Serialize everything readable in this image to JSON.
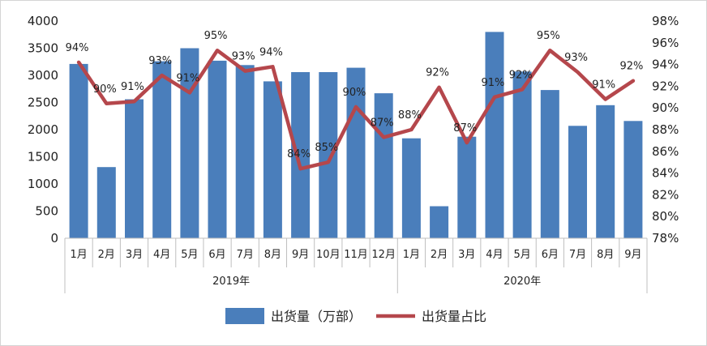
{
  "chart_data": {
    "type": "bar+line",
    "title": "",
    "categories": [
      "1月",
      "2月",
      "3月",
      "4月",
      "5月",
      "6月",
      "7月",
      "8月",
      "9月",
      "10月",
      "11月",
      "12月",
      "1月",
      "2月",
      "3月",
      "4月",
      "5月",
      "6月",
      "7月",
      "8月",
      "9月"
    ],
    "groups": [
      {
        "label": "2019年",
        "start": 0,
        "end": 11
      },
      {
        "label": "2020年",
        "start": 12,
        "end": 20
      }
    ],
    "series": [
      {
        "name": "出货量（万部）",
        "type": "bar",
        "axis": "left",
        "color": "#4a7ebb",
        "values": [
          3210,
          1310,
          2560,
          3260,
          3500,
          3270,
          3190,
          2890,
          3060,
          3060,
          3140,
          2670,
          1840,
          590,
          1870,
          3800,
          3070,
          2730,
          2070,
          2450,
          2160
        ]
      },
      {
        "name": "出货量占比",
        "type": "line",
        "axis": "right",
        "color": "#b5474c",
        "values": [
          94.2,
          90.4,
          90.6,
          93.0,
          91.4,
          95.3,
          93.4,
          93.8,
          84.4,
          85.0,
          90.1,
          87.3,
          88.0,
          91.9,
          86.8,
          91.0,
          91.7,
          95.3,
          93.3,
          90.8,
          92.5
        ],
        "labels": [
          "94%",
          "90%",
          "91%",
          "93%",
          "91%",
          "95%",
          "93%",
          "94%",
          "84%",
          "85%",
          "90%",
          "87%",
          "88%",
          "92%",
          "87%",
          "91%",
          "92%",
          "95%",
          "93%",
          "91%",
          "92%"
        ]
      }
    ],
    "y_left": {
      "min": 0,
      "max": 4000,
      "ticks": [
        "0",
        "500",
        "1000",
        "1500",
        "2000",
        "2500",
        "3000",
        "3500",
        "4000"
      ]
    },
    "y_right": {
      "min": 78,
      "max": 98,
      "ticks": [
        "78%",
        "80%",
        "82%",
        "84%",
        "86%",
        "88%",
        "90%",
        "92%",
        "94%",
        "96%",
        "98%"
      ]
    },
    "legend": {
      "position": "bottom",
      "items": [
        "出货量（万部）",
        "出货量占比"
      ]
    },
    "grid": false
  }
}
